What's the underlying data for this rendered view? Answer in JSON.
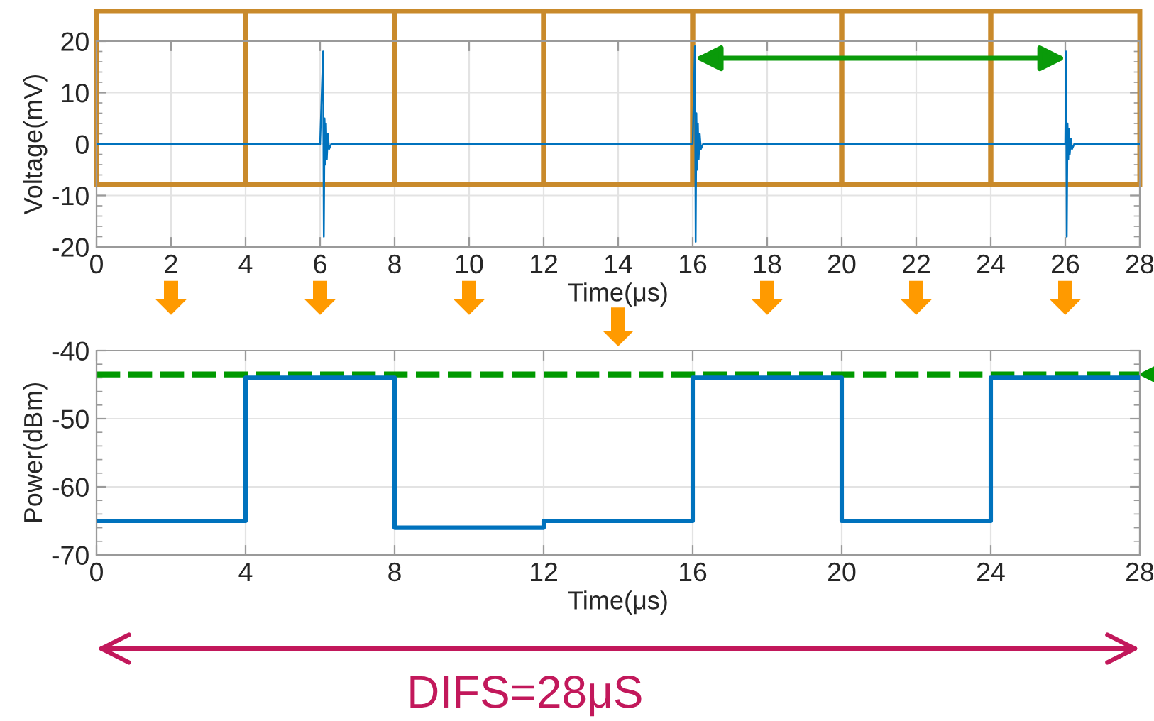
{
  "chart_data": [
    {
      "type": "line",
      "x": [
        0,
        6.0,
        6.08,
        6.1,
        6.12,
        6.14,
        6.16,
        6.18,
        6.21,
        6.24,
        6.3,
        16.0,
        16.06,
        16.08,
        16.1,
        16.12,
        16.14,
        16.16,
        16.19,
        16.22,
        16.28,
        26.0,
        26.02,
        26.04,
        26.06,
        26.08,
        26.1,
        26.12,
        26.15,
        26.18,
        26.24,
        28
      ],
      "values": [
        0,
        0,
        18,
        -18,
        5,
        -4,
        4,
        -3,
        2,
        -1,
        0,
        0,
        19,
        -19,
        6,
        -5,
        4,
        -3,
        2,
        -1,
        0,
        0,
        18,
        -18,
        4,
        -3,
        3,
        -2,
        1,
        -1,
        0,
        0
      ],
      "color": "#0072bd",
      "xlabel": "Time(μs)",
      "ylabel": "Voltage(mV)",
      "xlim": [
        0,
        28
      ],
      "ylim": [
        -20,
        20
      ],
      "xticks": [
        0,
        2,
        4,
        6,
        8,
        10,
        12,
        14,
        16,
        18,
        20,
        22,
        24,
        26,
        28
      ],
      "yticks": [
        -20,
        {
          "value": -18,
          "label": null
        },
        {
          "value": -16,
          "label": null
        },
        {
          "value": -14,
          "label": null
        },
        {
          "value": -12,
          "label": null
        },
        -10,
        {
          "value": -8,
          "label": null
        },
        {
          "value": -6,
          "label": null
        },
        {
          "value": -4,
          "label": null
        },
        {
          "value": -2,
          "label": null
        },
        0,
        {
          "value": 2,
          "label": null
        },
        {
          "value": 4,
          "label": null
        },
        {
          "value": 6,
          "label": null
        },
        {
          "value": 8,
          "label": null
        },
        10,
        {
          "value": 12,
          "label": null
        },
        {
          "value": 14,
          "label": null
        },
        {
          "value": 16,
          "label": null
        },
        {
          "value": 18,
          "label": null
        },
        20
      ],
      "grid": true
    },
    {
      "type": "step",
      "x": [
        0,
        4,
        8,
        12,
        16,
        20,
        24,
        28
      ],
      "values": [
        -65,
        -44,
        -66,
        -65,
        -44,
        -65,
        -44,
        -44
      ],
      "color": "#0072bd",
      "xlabel": "Time(μs)",
      "ylabel": "Power(dBm)",
      "xlim": [
        0,
        28
      ],
      "ylim": [
        -70,
        -40
      ],
      "xticks": [
        0,
        4,
        8,
        12,
        16,
        20,
        24,
        28
      ],
      "yticks": [
        -70,
        {
          "value": -68,
          "label": null
        },
        {
          "value": -66,
          "label": null
        },
        {
          "value": -64,
          "label": null
        },
        {
          "value": -62,
          "label": null
        },
        -60,
        {
          "value": -58,
          "label": null
        },
        {
          "value": -56,
          "label": null
        },
        {
          "value": -54,
          "label": null
        },
        {
          "value": -52,
          "label": null
        },
        -50,
        {
          "value": -48,
          "label": null
        },
        {
          "value": -46,
          "label": null
        },
        {
          "value": -44,
          "label": null
        },
        {
          "value": -42,
          "label": null
        },
        -40
      ],
      "grid": true,
      "ref_lines": [
        {
          "axis": "y",
          "value": -43.5,
          "color": "#009900",
          "line_style": "dashed"
        }
      ],
      "annotations": [
        "DIFS=28μS"
      ]
    }
  ]
}
